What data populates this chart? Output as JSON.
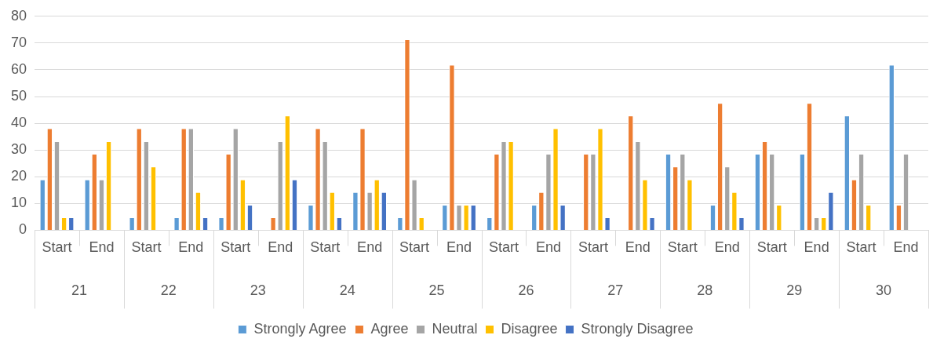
{
  "chart_data": {
    "type": "bar",
    "categories": [
      "Start",
      "End",
      "Start",
      "End",
      "Start",
      "End",
      "Start",
      "End",
      "Start",
      "End",
      "Start",
      "End",
      "Start",
      "End",
      "Start",
      "End",
      "Start",
      "End",
      "Start",
      "End"
    ],
    "annotations": [
      "21",
      "22",
      "23",
      "24",
      "25",
      "26",
      "27",
      "28",
      "29",
      "30"
    ],
    "series": [
      {
        "name": "Strongly Agree",
        "color": "#5b9bd5",
        "values": [
          19,
          19,
          4.8,
          4.8,
          4.8,
          0,
          9.5,
          14.3,
          4.8,
          9.5,
          4.8,
          9.5,
          0,
          0,
          28.6,
          9.5,
          28.6,
          28.6,
          42.9,
          61.9
        ]
      },
      {
        "name": "Agree",
        "color": "#ed7d31",
        "values": [
          38.1,
          28.6,
          38.1,
          38.1,
          28.6,
          4.8,
          38.1,
          38.1,
          71.4,
          61.9,
          28.6,
          14.3,
          28.6,
          42.9,
          23.8,
          47.6,
          33.3,
          47.6,
          19,
          9.5
        ]
      },
      {
        "name": "Neutral",
        "color": "#a5a5a5",
        "values": [
          33.3,
          19,
          33.3,
          38.1,
          38.1,
          33.3,
          33.3,
          14.3,
          19,
          9.5,
          33.3,
          28.6,
          28.6,
          33.3,
          28.6,
          23.8,
          28.6,
          4.8,
          28.6,
          28.6
        ]
      },
      {
        "name": "Disagree",
        "color": "#ffc000",
        "values": [
          4.8,
          33.3,
          23.8,
          14.3,
          19,
          42.9,
          14.3,
          19,
          4.8,
          9.5,
          33.3,
          38.1,
          38.1,
          19,
          19,
          14.3,
          9.5,
          4.8,
          9.5,
          0
        ]
      },
      {
        "name": "Strongly Disagree",
        "color": "#4472c4",
        "values": [
          4.8,
          0,
          0,
          4.8,
          9.5,
          19,
          4.8,
          14.3,
          0,
          9.5,
          0,
          9.5,
          4.8,
          4.8,
          0,
          4.8,
          0,
          14.3,
          0,
          0
        ]
      }
    ],
    "ylim": [
      0,
      80
    ],
    "yticks": [
      0,
      10,
      20,
      30,
      40,
      50,
      60,
      70,
      80
    ],
    "grid": "y",
    "legend": "bottom"
  }
}
